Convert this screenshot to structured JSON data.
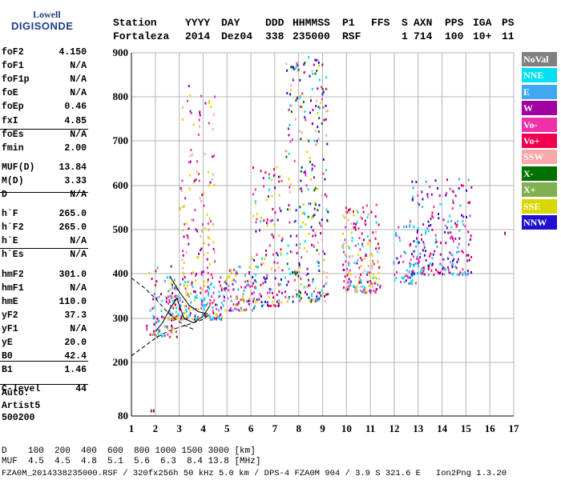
{
  "logo": {
    "line1": "Lowell",
    "line2": "DIGISONDE"
  },
  "header": {
    "labels": [
      "Station",
      "YYYY",
      "DAY",
      "DDD",
      "HHMMSS",
      "P1",
      "FFS",
      "S",
      "AXN",
      "PPS",
      "IGA",
      "PS"
    ],
    "values": [
      "Fortaleza",
      "2014",
      "Dez04",
      "338",
      "235000",
      "RSF",
      "",
      "1",
      "714",
      "100",
      "10+",
      "11"
    ]
  },
  "params": [
    {
      "name": "foF2",
      "value": "4.150"
    },
    {
      "name": "foF1",
      "value": "N/A"
    },
    {
      "name": "foF1p",
      "value": "N/A"
    },
    {
      "name": "foE",
      "value": "N/A"
    },
    {
      "name": "foEp",
      "value": "0.46"
    },
    {
      "name": "fxI",
      "value": "4.85"
    },
    {
      "name": "foEs",
      "value": "N/A"
    },
    {
      "name": "fmin",
      "value": "2.00"
    },
    {
      "name": "MUF(D)",
      "value": "13.84"
    },
    {
      "name": "M(D)",
      "value": "3.33"
    },
    {
      "name": "D",
      "value": "N/A"
    },
    {
      "name": "h`F",
      "value": "265.0"
    },
    {
      "name": "h`F2",
      "value": "265.0"
    },
    {
      "name": "h`E",
      "value": "N/A"
    },
    {
      "name": "h`Es",
      "value": "N/A"
    },
    {
      "name": "hmF2",
      "value": "301.0"
    },
    {
      "name": "hmF1",
      "value": "N/A"
    },
    {
      "name": "hmE",
      "value": "110.0"
    },
    {
      "name": "yF2",
      "value": "37.3"
    },
    {
      "name": "yF1",
      "value": "N/A"
    },
    {
      "name": "yE",
      "value": "20.0"
    },
    {
      "name": "B0",
      "value": "42.4"
    },
    {
      "name": "B1",
      "value": "1.46"
    },
    {
      "name": "C-level",
      "value": "44"
    }
  ],
  "autoscaling": {
    "line1": "Auto:",
    "line2": "Artist5",
    "line3": "500200"
  },
  "legend": [
    {
      "label": "NoVal",
      "color": "#808080"
    },
    {
      "label": "NNE",
      "color": "#00e0f0"
    },
    {
      "label": "E",
      "color": "#40a8f0"
    },
    {
      "label": "W",
      "color": "#a000a0"
    },
    {
      "label": "Vo-",
      "color": "#f030a8"
    },
    {
      "label": "Vo+",
      "color": "#f00050"
    },
    {
      "label": "SSW",
      "color": "#f8a8a8"
    },
    {
      "label": "X-",
      "color": "#007000"
    },
    {
      "label": "X+",
      "color": "#80b050"
    },
    {
      "label": "SSE",
      "color": "#d8d800"
    },
    {
      "label": "NNW",
      "color": "#2010d0"
    }
  ],
  "chart_data": {
    "type": "scatter",
    "xlim": [
      1,
      17
    ],
    "ylim": [
      80,
      900
    ],
    "xticks": [
      "1",
      "2",
      "3",
      "4",
      "5",
      "6",
      "7",
      "8",
      "9",
      "10",
      "11",
      "12",
      "13",
      "14",
      "15",
      "16",
      "17"
    ],
    "yticks": [
      "900",
      "800",
      "700",
      "600",
      "500",
      "400",
      "300",
      "200",
      "80"
    ],
    "grid": true,
    "clusters": [
      {
        "x": [
          1.6,
          2.9
        ],
        "y": [
          260,
          420
        ],
        "colors": [
          "#d8d800",
          "#40a8f0",
          "#a000a0",
          "#f030a8",
          "#f00050",
          "#00e0f0"
        ],
        "density": 90
      },
      {
        "x": [
          2.5,
          4.9
        ],
        "y": [
          300,
          400
        ],
        "colors": [
          "#d8d800",
          "#40a8f0",
          "#00e0f0",
          "#a000a0",
          "#f030a8"
        ],
        "density": 200
      },
      {
        "x": [
          3.0,
          4.5
        ],
        "y": [
          400,
          830
        ],
        "colors": [
          "#d8d800",
          "#f8a8a8",
          "#f030a8",
          "#a000a0"
        ],
        "density": 120
      },
      {
        "x": [
          4.9,
          6.1
        ],
        "y": [
          320,
          420
        ],
        "colors": [
          "#d8d800",
          "#40a8f0",
          "#f030a8",
          "#a000a0"
        ],
        "density": 90
      },
      {
        "x": [
          6.0,
          7.3
        ],
        "y": [
          330,
          650
        ],
        "colors": [
          "#2010d0",
          "#d8d800",
          "#f030a8",
          "#a000a0",
          "#f00050",
          "#00e0f0"
        ],
        "density": 140
      },
      {
        "x": [
          7.4,
          9.2
        ],
        "y": [
          340,
          900
        ],
        "colors": [
          "#2010d0",
          "#d8d800",
          "#f030a8",
          "#a000a0",
          "#00e0f0",
          "#f8a8a8",
          "#007000"
        ],
        "density": 300
      },
      {
        "x": [
          9.8,
          11.4
        ],
        "y": [
          360,
          560
        ],
        "colors": [
          "#d8d800",
          "#f030a8",
          "#a000a0",
          "#f00050",
          "#00e0f0",
          "#f8a8a8"
        ],
        "density": 200
      },
      {
        "x": [
          11.9,
          13.0
        ],
        "y": [
          380,
          510
        ],
        "colors": [
          "#00e0f0",
          "#40a8f0",
          "#2010d0",
          "#f030a8"
        ],
        "density": 60
      },
      {
        "x": [
          12.6,
          15.2
        ],
        "y": [
          400,
          620
        ],
        "colors": [
          "#2010d0",
          "#40a8f0",
          "#00e0f0",
          "#f030a8",
          "#a000a0",
          "#f00050"
        ],
        "density": 220
      }
    ],
    "isolated_points": [
      {
        "x": 1.8,
        "y": 95,
        "color": "#f00050"
      },
      {
        "x": 1.9,
        "y": 95,
        "color": "#007000"
      },
      {
        "x": 16.6,
        "y": 495,
        "color": "#a000a0"
      }
    ],
    "traces": [
      {
        "x": [
          1.0,
          1.5,
          2.0,
          2.5,
          3.0,
          3.5,
          4.0,
          4.3
        ],
        "y": [
          215,
          235,
          255,
          270,
          280,
          288,
          298,
          310
        ]
      },
      {
        "x": [
          1.0,
          1.5,
          2.0,
          2.4,
          2.8,
          3.2,
          3.6
        ],
        "y": [
          390,
          370,
          345,
          320,
          300,
          285,
          275
        ]
      },
      {
        "x": [
          2.0,
          2.3,
          2.6,
          2.9,
          3.2,
          3.6,
          4.0,
          4.3
        ],
        "y": [
          270,
          290,
          320,
          345,
          300,
          290,
          305,
          330
        ]
      },
      {
        "x": [
          2.6,
          3.0,
          3.4,
          3.8,
          4.2
        ],
        "y": [
          395,
          360,
          330,
          315,
          310
        ]
      }
    ]
  },
  "bottom_table": {
    "row_d_label": "D",
    "row_d": [
      "100",
      "200",
      "400",
      "600",
      "800",
      "1000",
      "1500",
      "3000"
    ],
    "row_d_unit": "[km]",
    "row_muf_label": "MUF",
    "row_muf": [
      "4.5",
      "4.5",
      "4.8",
      "5.1",
      "5.6",
      "6.3",
      "8.4",
      "13.8"
    ],
    "row_muf_unit": "[MHz]"
  },
  "footer": {
    "text": "FZA0M_2014338235000.RSF / 320fx256h 50 kHz 5.0 km / DPS-4 FZA0M 904 / 3.9 S 321.6 E   Ion2Png 1.3.20"
  }
}
